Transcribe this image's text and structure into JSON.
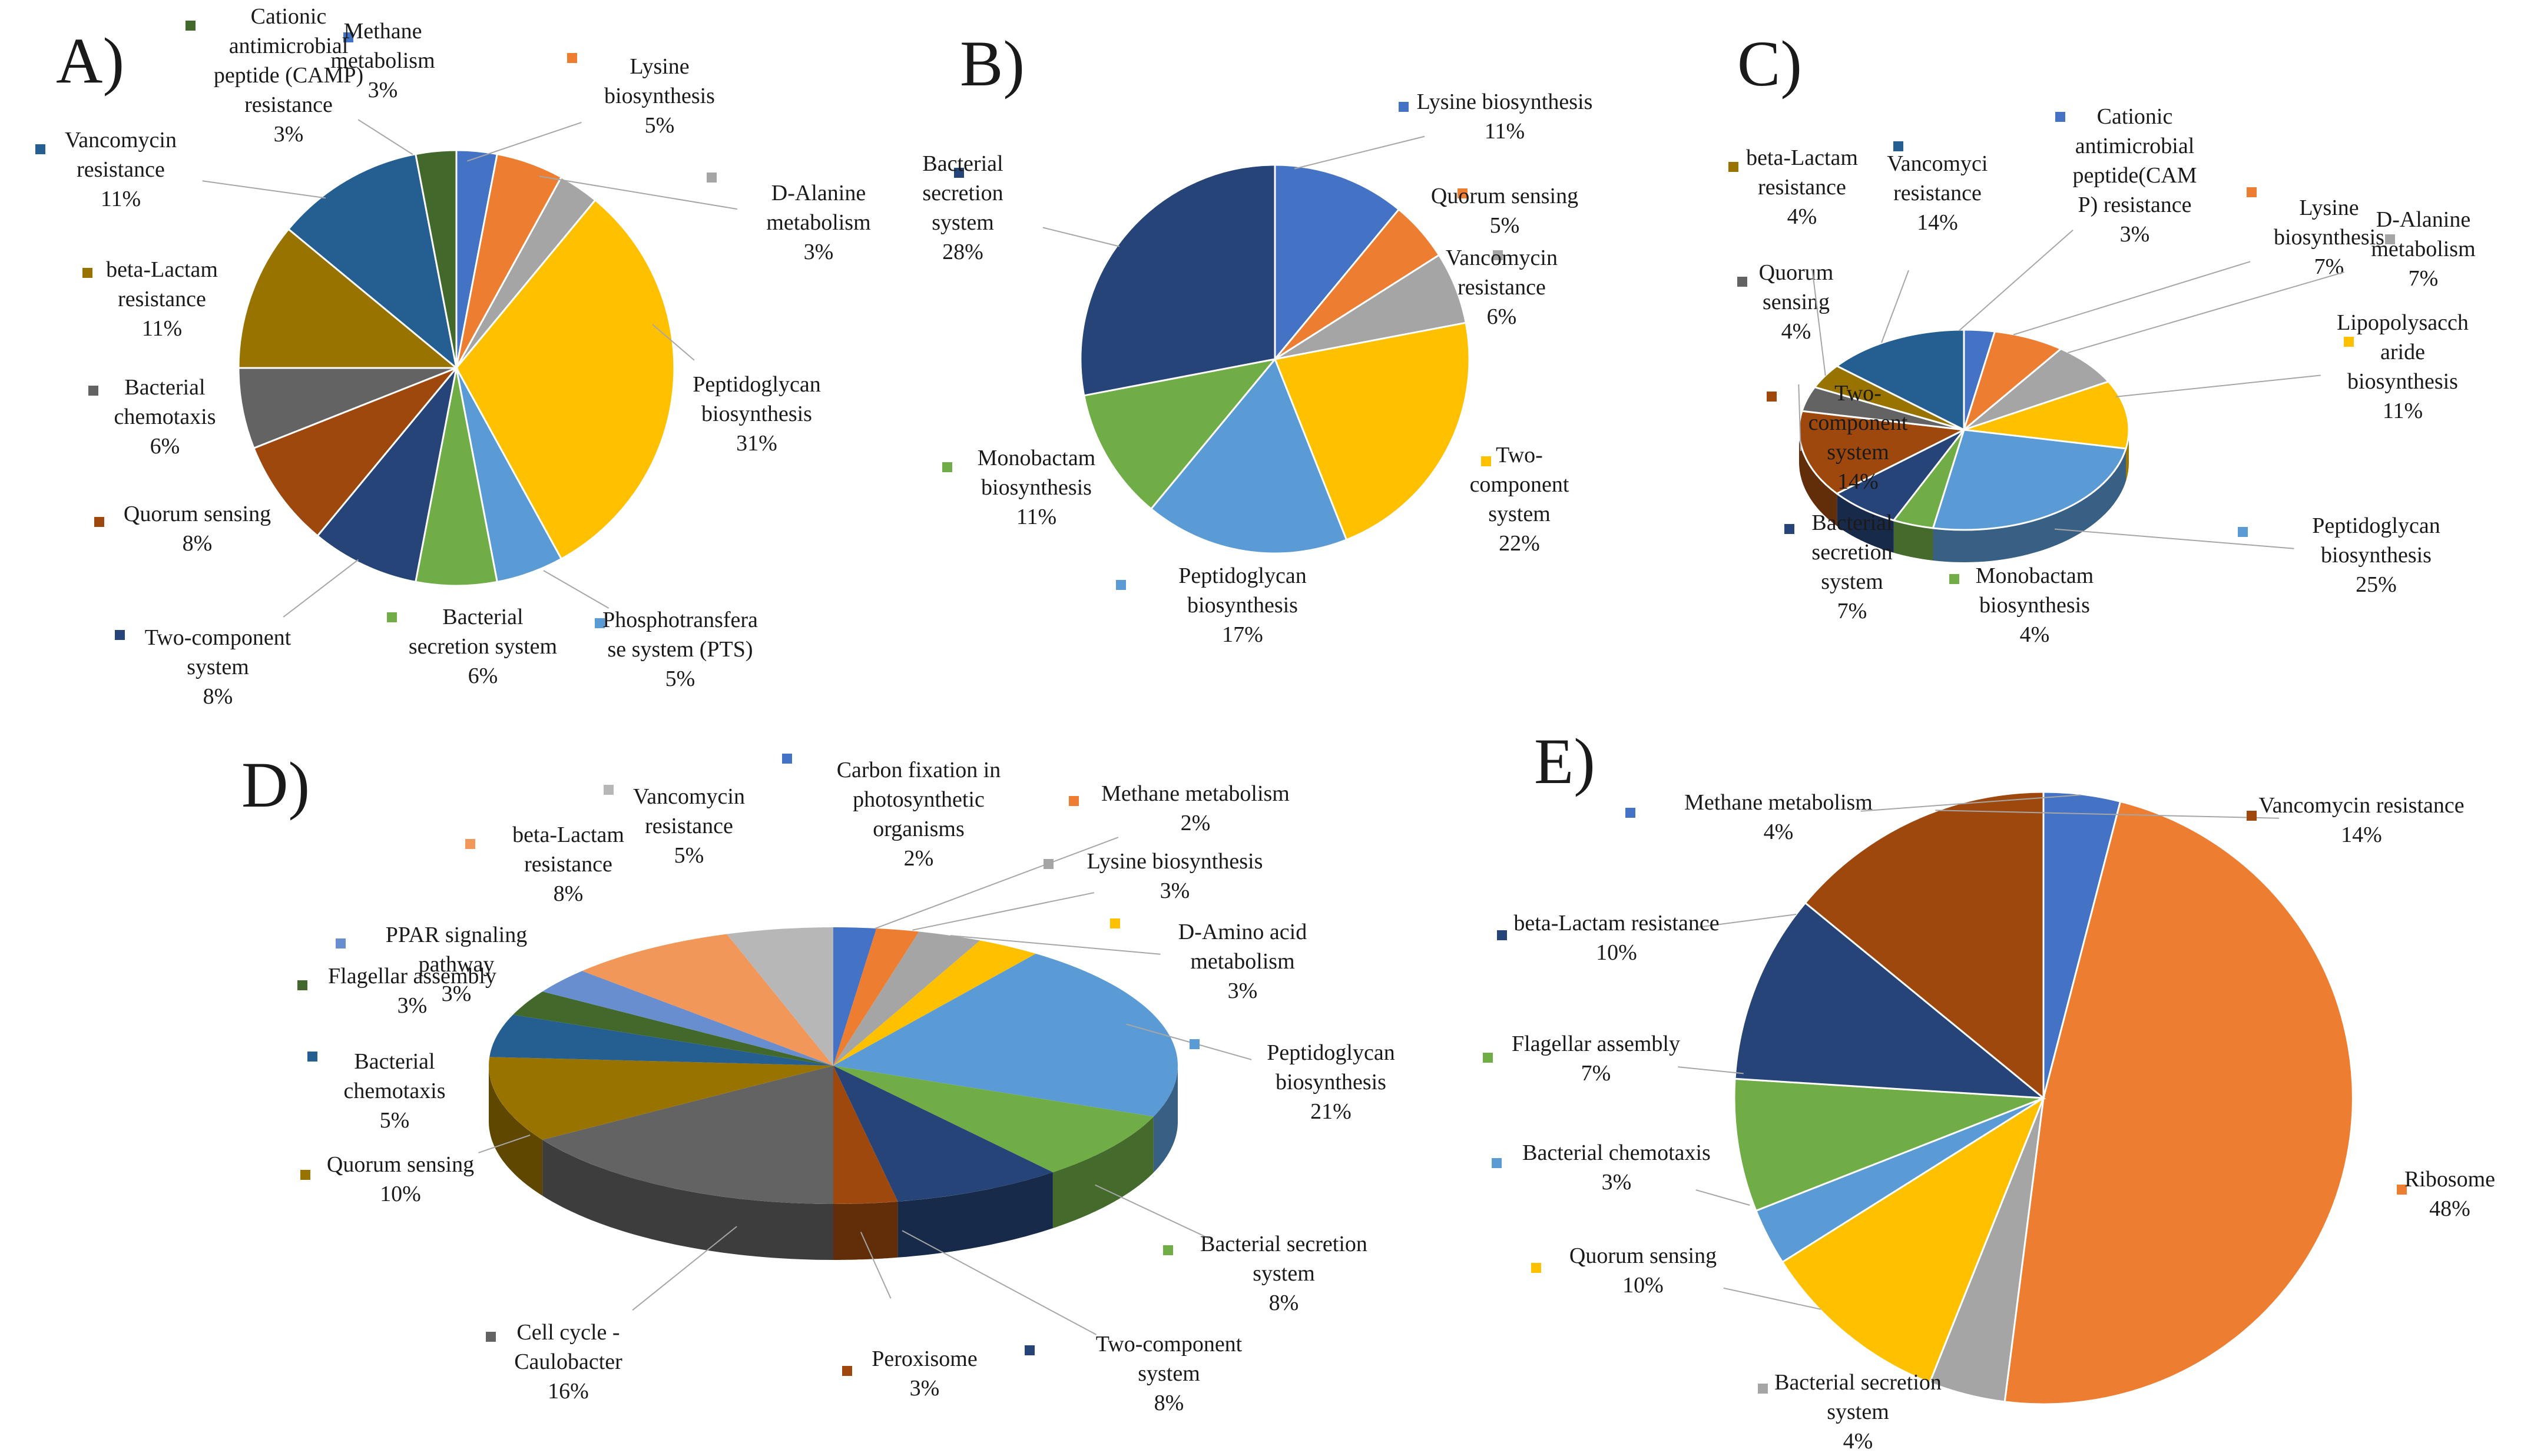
{
  "chart_data": [
    {
      "panel": "A)",
      "type": "pie",
      "title": "",
      "categories": [
        "Methane metabolism",
        "Lysine biosynthesis",
        "D-Alanine metabolism",
        "Peptidoglycan biosynthesis",
        "Phosphotransferase system (PTS)",
        "Bacterial secretion system",
        "Two-component system",
        "Quorum sensing",
        "Bacterial chemotaxis",
        "beta-Lactam resistance",
        "Vancomycin resistance",
        "Cationic antimicrobial peptide (CAMP) resistance"
      ],
      "values": [
        3,
        5,
        3,
        31,
        5,
        6,
        8,
        8,
        6,
        11,
        11,
        3
      ],
      "colors": [
        "#4472C4",
        "#ED7D31",
        "#A5A5A5",
        "#FFC000",
        "#5B9BD5",
        "#70AD47",
        "#264478",
        "#9E480E",
        "#636363",
        "#997300",
        "#255E91",
        "#43682B"
      ],
      "labels": [
        {
          "lines": [
            "Methane",
            "metabolism",
            "3%"
          ]
        },
        {
          "lines": [
            "Lysine",
            "biosynthesis",
            "5%"
          ]
        },
        {
          "lines": [
            "D-Alanine",
            "metabolism",
            "3%"
          ]
        },
        {
          "lines": [
            "Peptidoglycan",
            "biosynthesis",
            "31%"
          ]
        },
        {
          "lines": [
            "Phosphotransfera",
            "se system (PTS)",
            "5%"
          ]
        },
        {
          "lines": [
            "Bacterial",
            "secretion system",
            "6%"
          ]
        },
        {
          "lines": [
            "Two-component",
            "system",
            "8%"
          ]
        },
        {
          "lines": [
            "Quorum sensing",
            "8%"
          ]
        },
        {
          "lines": [
            "Bacterial",
            "chemotaxis",
            "6%"
          ]
        },
        {
          "lines": [
            "beta-Lactam",
            "resistance",
            "11%"
          ]
        },
        {
          "lines": [
            "Vancomycin",
            "resistance",
            "11%"
          ]
        },
        {
          "lines": [
            "Cationic",
            "antimicrobial",
            "peptide (CAMP)",
            "resistance",
            "3%"
          ]
        }
      ]
    },
    {
      "panel": "B)",
      "type": "pie",
      "title": "",
      "categories": [
        "Lysine biosynthesis",
        "Quorum sensing",
        "Vancomycin resistance",
        "Two-component system",
        "Peptidoglycan biosynthesis",
        "Monobactam biosynthesis",
        "Bacterial secretion system"
      ],
      "values": [
        11,
        5,
        6,
        22,
        17,
        11,
        28
      ],
      "colors": [
        "#4472C4",
        "#ED7D31",
        "#A5A5A5",
        "#FFC000",
        "#5B9BD5",
        "#70AD47",
        "#264478"
      ],
      "labels": [
        {
          "lines": [
            "Lysine  biosynthesis",
            "11%"
          ]
        },
        {
          "lines": [
            "Quorum  sensing",
            "5%"
          ]
        },
        {
          "lines": [
            "Vancomycin",
            "resistance",
            "6%"
          ]
        },
        {
          "lines": [
            "Two-",
            "component",
            "system",
            "22%"
          ]
        },
        {
          "lines": [
            "Peptidoglycan",
            "biosynthesis",
            "17%"
          ]
        },
        {
          "lines": [
            "Monobactam",
            "biosynthesis",
            "11%"
          ]
        },
        {
          "lines": [
            "Bacterial",
            "secretion",
            "system",
            "28%"
          ]
        }
      ]
    },
    {
      "panel": "C)",
      "type": "pie",
      "title": "",
      "categories": [
        "Cationic antimicrobial peptide (CAMP) resistance",
        "Lysine biosynthesis",
        "D-Alanine metabolism",
        "Lipopolysaccharide biosynthesis",
        "Peptidoglycan biosynthesis",
        "Monobactam biosynthesis",
        "Bacterial secretion system",
        "Two-component system",
        "Quorum sensing",
        "beta-Lactam resistance",
        "Vancomycin resistance"
      ],
      "values": [
        3,
        7,
        7,
        11,
        25,
        4,
        7,
        14,
        4,
        4,
        14
      ],
      "colors": [
        "#4472C4",
        "#ED7D31",
        "#A5A5A5",
        "#FFC000",
        "#5B9BD5",
        "#70AD47",
        "#264478",
        "#9E480E",
        "#636363",
        "#997300",
        "#255E91"
      ],
      "labels": [
        {
          "lines": [
            "Cationic",
            "antimicrobial",
            "peptide(CAM",
            "P) resistance",
            "3%"
          ]
        },
        {
          "lines": [
            "Lysine",
            "biosynthesis",
            "7%"
          ]
        },
        {
          "lines": [
            "D-Alanine",
            "metabolism",
            "7%"
          ]
        },
        {
          "lines": [
            "Lipopolysacch",
            "aride",
            "biosynthesis",
            "11%"
          ]
        },
        {
          "lines": [
            "Peptidoglycan",
            "biosynthesis",
            "25%"
          ]
        },
        {
          "lines": [
            "Monobactam",
            "biosynthesis",
            "4%"
          ]
        },
        {
          "lines": [
            "Bacterial",
            "secretion",
            "system",
            "7%"
          ]
        },
        {
          "lines": [
            "Two-",
            "component",
            "system",
            "14%"
          ]
        },
        {
          "lines": [
            "Quorum",
            "sensing",
            "4%"
          ]
        },
        {
          "lines": [
            "beta-Lactam",
            "resistance",
            "4%"
          ]
        },
        {
          "lines": [
            "Vancomyci",
            "resistance",
            "14%"
          ]
        }
      ]
    },
    {
      "panel": "D)",
      "type": "pie",
      "title": "",
      "categories": [
        "Carbon fixation in photosynthetic organisms",
        "Methane metabolism",
        "Lysine biosynthesis",
        "D-Amino acid metabolism",
        "Peptidoglycan biosynthesis",
        "Bacterial secretion system",
        "Two-component system",
        "Peroxisome",
        "Cell cycle - Caulobacter",
        "Quorum sensing",
        "Bacterial chemotaxis",
        "Flagellar assembly",
        "PPAR signaling pathway",
        "beta-Lactam resistance",
        "Vancomycin resistance"
      ],
      "values": [
        2,
        2,
        3,
        3,
        21,
        8,
        8,
        3,
        16,
        10,
        5,
        3,
        3,
        8,
        5
      ],
      "colors": [
        "#4472C4",
        "#ED7D31",
        "#A5A5A5",
        "#FFC000",
        "#5B9BD5",
        "#70AD47",
        "#264478",
        "#9E480E",
        "#636363",
        "#997300",
        "#255E91",
        "#43682B",
        "#698ED0",
        "#F1975A",
        "#B7B7B7"
      ],
      "labels": [
        {
          "lines": [
            "Carbon  fixation  in",
            "photosynthetic",
            "organisms",
            "2%"
          ]
        },
        {
          "lines": [
            "Methane  metabolism",
            "2%"
          ]
        },
        {
          "lines": [
            "Lysine  biosynthesis",
            "3%"
          ]
        },
        {
          "lines": [
            "D-Amino  acid",
            "metabolism",
            "3%"
          ]
        },
        {
          "lines": [
            "Peptidoglycan",
            "biosynthesis",
            "21%"
          ]
        },
        {
          "lines": [
            "Bacterial  secretion",
            "system",
            "8%"
          ]
        },
        {
          "lines": [
            "Two-component",
            "system",
            "8%"
          ]
        },
        {
          "lines": [
            "Peroxisome",
            "3%"
          ]
        },
        {
          "lines": [
            "Cell cycle -",
            "Caulobacter",
            "16%"
          ]
        },
        {
          "lines": [
            "Quorum  sensing",
            "10%"
          ]
        },
        {
          "lines": [
            "Bacterial",
            "chemotaxis",
            "5%"
          ]
        },
        {
          "lines": [
            "Flagellar  assembly",
            "3%"
          ]
        },
        {
          "lines": [
            "PPAR  signaling",
            "pathway",
            "3%"
          ]
        },
        {
          "lines": [
            "beta-Lactam",
            "resistance",
            "8%"
          ]
        },
        {
          "lines": [
            "Vancomycin",
            "resistance",
            "5%"
          ]
        }
      ]
    },
    {
      "panel": "E)",
      "type": "pie",
      "title": "",
      "categories": [
        "Methane metabolism",
        "Ribosome",
        "Bacterial secretion system",
        "Quorum sensing",
        "Bacterial chemotaxis",
        "Flagellar assembly",
        "beta-Lactam resistance",
        "Vancomycin resistance"
      ],
      "values": [
        4,
        48,
        4,
        10,
        3,
        7,
        10,
        14
      ],
      "colors": [
        "#4472C4",
        "#ED7D31",
        "#A5A5A5",
        "#FFC000",
        "#5B9BD5",
        "#70AD47",
        "#264478",
        "#9E480E"
      ],
      "labels": [
        {
          "lines": [
            "Methane  metabolism",
            "4%"
          ]
        },
        {
          "lines": [
            "Ribosome",
            "48%"
          ]
        },
        {
          "lines": [
            "Bacterial  secretion",
            "system",
            "4%"
          ]
        },
        {
          "lines": [
            "Quorum  sensing",
            "10%"
          ]
        },
        {
          "lines": [
            "Bacterial  chemotaxis",
            "3%"
          ]
        },
        {
          "lines": [
            "Flagellar  assembly",
            "7%"
          ]
        },
        {
          "lines": [
            "beta-Lactam  resistance",
            "10%"
          ]
        },
        {
          "lines": [
            "Vancomycin  resistance",
            "14%"
          ]
        }
      ]
    }
  ]
}
